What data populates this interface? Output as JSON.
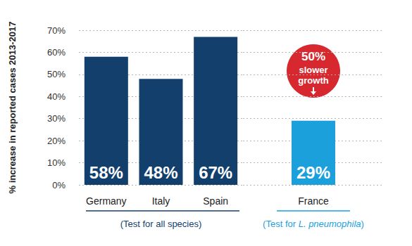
{
  "chart_data": {
    "type": "bar",
    "categories": [
      "Germany",
      "Italy",
      "Spain",
      "France"
    ],
    "values": [
      58,
      48,
      67,
      29
    ],
    "value_labels": [
      "58%",
      "48%",
      "67%",
      "29%"
    ],
    "colors": [
      "#133f6d",
      "#133f6d",
      "#133f6d",
      "#1ba0dc"
    ],
    "y_label": "% increase in reported cases 2013-2017",
    "ylim": [
      0,
      70
    ],
    "yticks": [
      {
        "value": 0,
        "label": "0%"
      },
      {
        "value": 10,
        "label": "10%"
      },
      {
        "value": 20,
        "label": "20%"
      },
      {
        "value": 30,
        "label": "30%"
      },
      {
        "value": 40,
        "label": "40%"
      },
      {
        "value": 50,
        "label": "50%"
      },
      {
        "value": 60,
        "label": "60%"
      },
      {
        "value": 70,
        "label": "70%"
      }
    ],
    "grid": true,
    "data_labels": true,
    "groups": [
      {
        "label": "(Test for all species)",
        "categories": [
          "Germany",
          "Italy",
          "Spain"
        ]
      },
      {
        "label": "(Test for L. pneumophila)",
        "categories": [
          "France"
        ]
      }
    ],
    "annotation": {
      "lines": [
        "50%",
        "slower",
        "growth"
      ],
      "category": "France",
      "color": "#d7282f"
    }
  }
}
